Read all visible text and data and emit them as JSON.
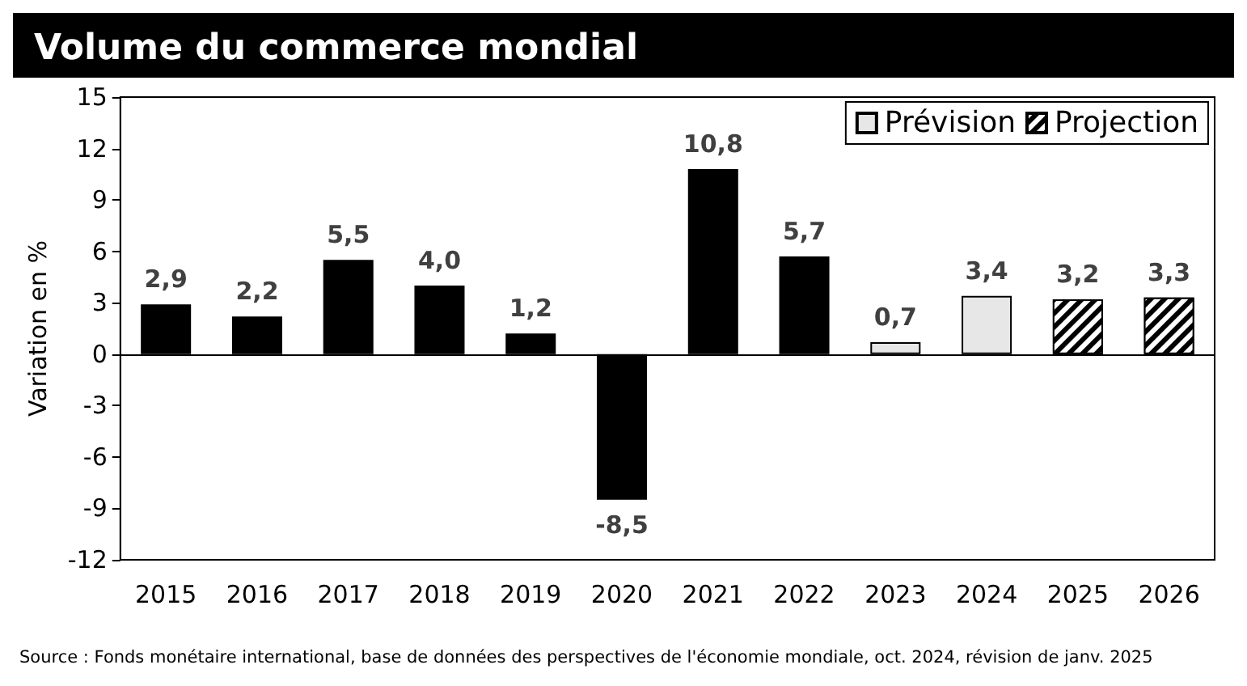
{
  "chart_data": {
    "type": "bar",
    "title": "Volume du commerce mondial",
    "ylabel": "Variation en %",
    "categories": [
      "2015",
      "2016",
      "2017",
      "2018",
      "2019",
      "2020",
      "2021",
      "2022",
      "2023",
      "2024",
      "2025",
      "2026"
    ],
    "series": [
      {
        "color": "#000000",
        "values": [
          2.9,
          2.2,
          5.5,
          4.0,
          1.2,
          -8.5,
          10.8,
          5.7,
          null,
          null,
          null,
          null
        ],
        "value_labels": [
          "2,9",
          "2,2",
          "5,5",
          "4,0",
          "1,2",
          "-8,5",
          "10,8",
          "5,7",
          null,
          null,
          null,
          null
        ]
      },
      {
        "name": "Prévision",
        "color": "#e7e7e7",
        "values": [
          null,
          null,
          null,
          null,
          null,
          null,
          null,
          null,
          0.7,
          3.4,
          null,
          null
        ],
        "value_labels": [
          null,
          null,
          null,
          null,
          null,
          null,
          null,
          null,
          "0,7",
          "3,4",
          null,
          null
        ]
      },
      {
        "name": "Projection",
        "color": "#000000",
        "values": [
          null,
          null,
          null,
          null,
          null,
          null,
          null,
          null,
          null,
          null,
          3.2,
          3.3
        ],
        "value_labels": [
          null,
          null,
          null,
          null,
          null,
          null,
          null,
          null,
          null,
          null,
          "3,2",
          "3,3"
        ]
      }
    ],
    "ylim": [
      -12,
      15
    ],
    "yticks": [
      -12,
      -9,
      -6,
      -3,
      0,
      3,
      6,
      9,
      12,
      15
    ],
    "legend": "top right",
    "annotations": [
      "Source : Fonds monétaire international, base de données des perspectives de l'économie mondiale, oct. 2024, révision de janv. 2025"
    ]
  }
}
